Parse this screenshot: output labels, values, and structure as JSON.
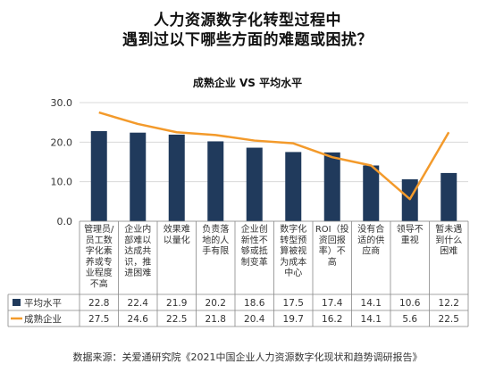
{
  "header": {
    "title_line1": "人力资源数字化转型过程中",
    "title_line2": "遇到过以下哪些方面的难题或困扰？"
  },
  "chart_data": {
    "type": "bar",
    "title": "成熟企业 VS 平均水平",
    "categories": [
      [
        "管理员/",
        "员工数",
        "字化素",
        "养或专",
        "业程度",
        "不高"
      ],
      [
        "企业内",
        "部难以",
        "达成共",
        "识，推",
        "进困难"
      ],
      [
        "效果难",
        "以量化"
      ],
      [
        "负责落",
        "地的人",
        "手有限"
      ],
      [
        "企业创",
        "新性不",
        "够或抵",
        "制变革"
      ],
      [
        "数字化",
        "转型预",
        "算被视",
        "为成本",
        "中心"
      ],
      [
        "ROI（投",
        "资回报",
        "率）不",
        "高"
      ],
      [
        "没有合",
        "适的供",
        "应商"
      ],
      [
        "领导不",
        "重视"
      ],
      [
        "暂未遇",
        "到什么",
        "困难"
      ]
    ],
    "series": [
      {
        "name": "平均水平",
        "kind": "bar",
        "color": "#203a5c",
        "values": [
          "22.8",
          "22.4",
          "21.9",
          "20.2",
          "18.6",
          "17.5",
          "17.4",
          "14.1",
          "10.6",
          "12.2"
        ]
      },
      {
        "name": "成熟企业",
        "kind": "line",
        "color": "#f39a2b",
        "values": [
          "27.5",
          "24.6",
          "22.5",
          "21.8",
          "20.4",
          "19.7",
          "16.2",
          "14.1",
          "5.6",
          "22.5"
        ]
      }
    ],
    "y_ticks": [
      "0.0",
      "10.0",
      "20.0",
      "30.0"
    ],
    "ylim": [
      0,
      30
    ],
    "grid": true
  },
  "source": "数据来源：关爱通研究院《2021中国企业人力资源数字化现状和趋势调研报告》"
}
